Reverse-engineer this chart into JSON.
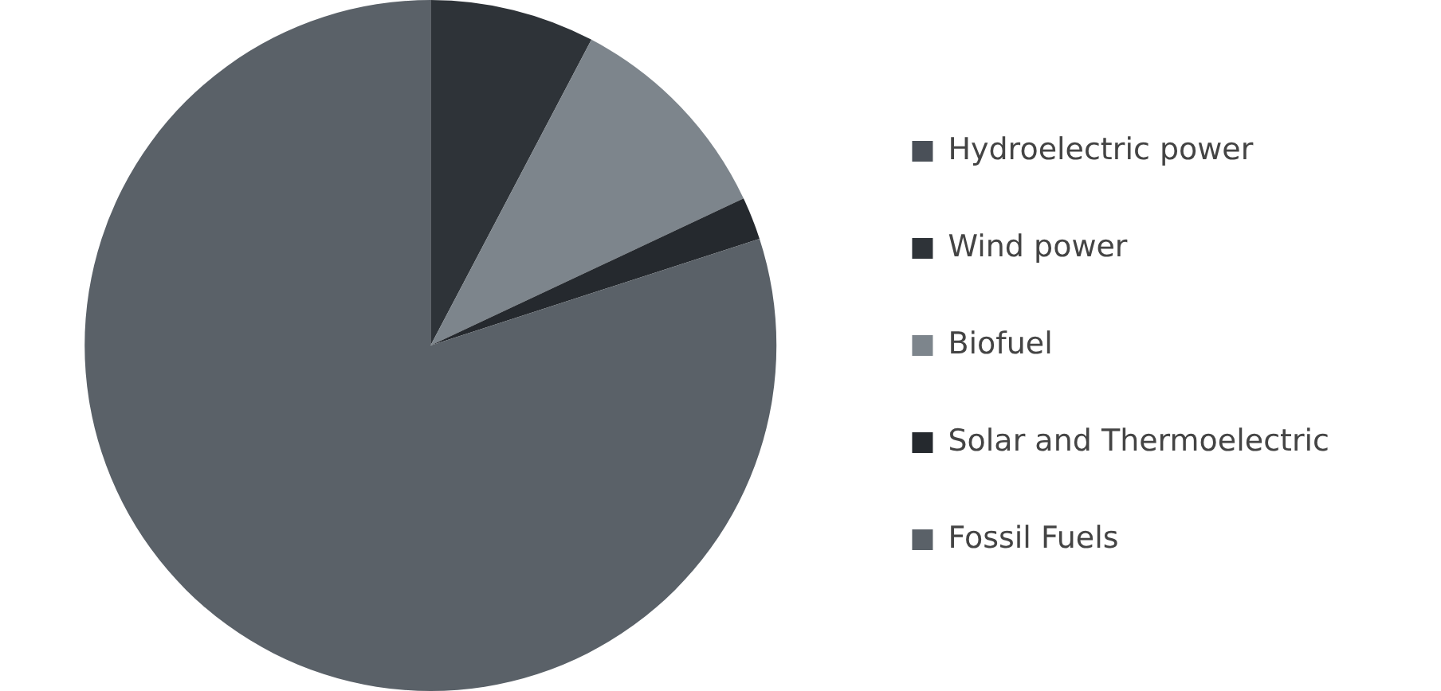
{
  "chart_data": {
    "type": "pie",
    "categories": [
      "Hydroelectric power",
      "Wind power",
      "Biofuel",
      "Solar and Thermoelectric",
      "Fossil Fuels"
    ],
    "values": [
      0,
      7.7,
      10.3,
      2,
      80
    ],
    "colors": [
      "#4a5058",
      "#2e3338",
      "#7d858c",
      "#25292e",
      "#5a6168"
    ],
    "legend": "right"
  }
}
